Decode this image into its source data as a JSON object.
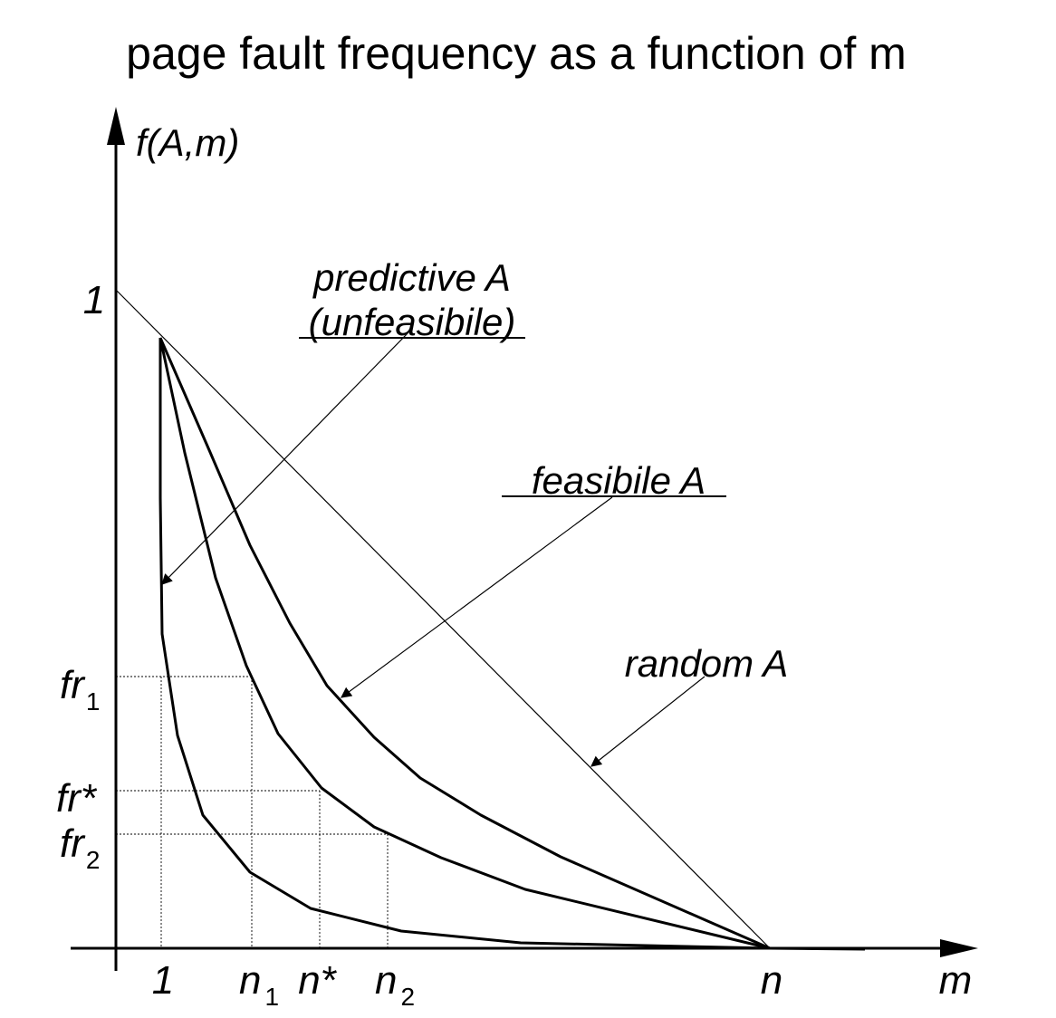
{
  "title": "page fault frequency as a function of m",
  "axes": {
    "y_label": "f(A,m)",
    "x_label": "m",
    "y_tick_one": "1"
  },
  "x_ticks": {
    "one": "1",
    "n1_base": "n",
    "n1_sub": "1",
    "nstar": "n*",
    "n2_base": "n",
    "n2_sub": "2",
    "n": "n"
  },
  "y_ticks": {
    "fr1_base": "fr",
    "fr1_sub": "1",
    "frstar": "fr*",
    "fr2_base": "fr",
    "fr2_sub": "2"
  },
  "annotations": {
    "predictive_line1": "predictive A",
    "predictive_line2": "(unfeasibile)",
    "feasible": "feasibile A",
    "random": "random A"
  }
}
